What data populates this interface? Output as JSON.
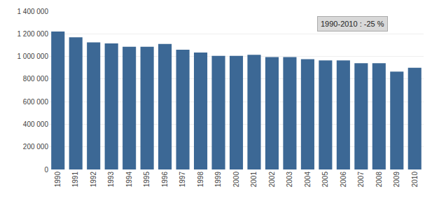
{
  "chart_data": {
    "type": "bar",
    "categories": [
      "1990",
      "1991",
      "1992",
      "1993",
      "1994",
      "1995",
      "1996",
      "1997",
      "1998",
      "1999",
      "2000",
      "2001",
      "2002",
      "2003",
      "2004",
      "2005",
      "2006",
      "2007",
      "2008",
      "2009",
      "2010"
    ],
    "values": [
      1220000,
      1170000,
      1125000,
      1115000,
      1085000,
      1085000,
      1110000,
      1060000,
      1035000,
      1005000,
      1005000,
      1015000,
      995000,
      995000,
      975000,
      965000,
      965000,
      940000,
      940000,
      865000,
      900000
    ],
    "color": "#3C6895",
    "ylim": [
      0,
      1400000
    ],
    "yticks": [
      0,
      {
        "value": 200000,
        "label": "200 000"
      },
      {
        "value": 400000,
        "label": "400 000"
      },
      {
        "value": 600000,
        "label": "600 000"
      },
      {
        "value": 800000,
        "label": "800 000"
      },
      {
        "value": 1000000,
        "label": "1 000 000"
      },
      {
        "value": 1200000,
        "label": "1 200 000"
      },
      {
        "value": 1400000,
        "label": "1 400 000"
      }
    ],
    "grid": true,
    "annotations": [
      "1990-2010 : -25 %"
    ]
  }
}
